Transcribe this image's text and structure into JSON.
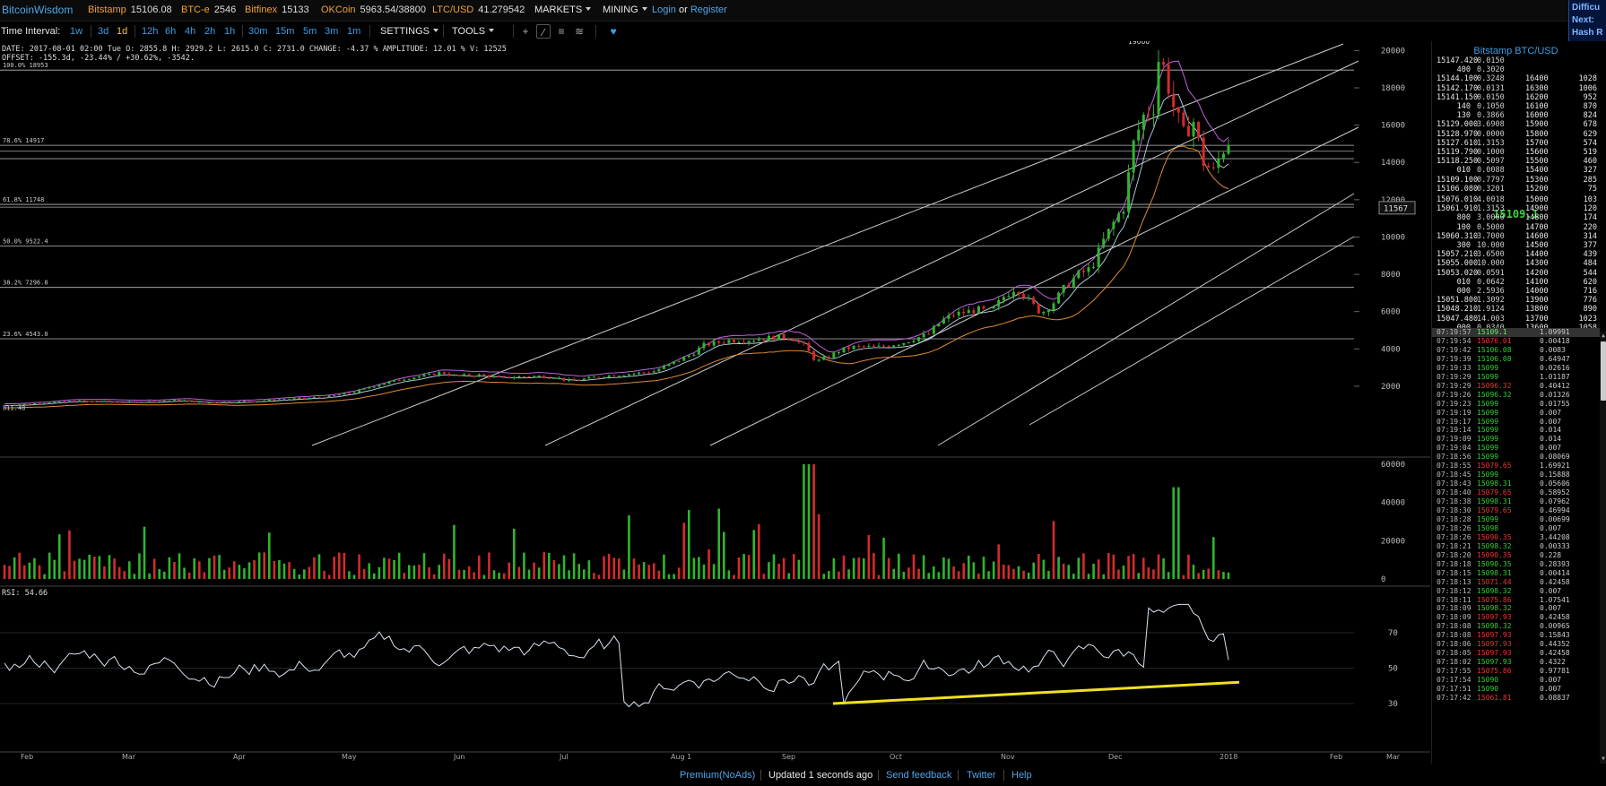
{
  "topbar": {
    "logo": "BitcoinWisdom",
    "exchanges": [
      {
        "name": "Bitstamp",
        "value": "15106.08"
      },
      {
        "name": "BTC-e",
        "value": "2546"
      },
      {
        "name": "Bitfinex",
        "value": "15133"
      },
      {
        "name": "OKCoin",
        "value": "5963.54/38800"
      },
      {
        "name": "LTC/USD",
        "value": "41.279542"
      }
    ],
    "markets_label": "MARKETS",
    "mining_label": "MINING",
    "login_label": "Login",
    "or_label": "or",
    "register_label": "Register"
  },
  "farright": {
    "line1": "Difficu",
    "line2": "Next:",
    "line3": "Hash R"
  },
  "toolbar": {
    "interval_label": "Time Interval:",
    "intervals": [
      "1w",
      "3d",
      "1d",
      "12h",
      "6h",
      "4h",
      "2h",
      "1h",
      "30m",
      "15m",
      "5m",
      "3m",
      "1m"
    ],
    "active_interval": "1d",
    "settings_label": "SETTINGS",
    "tools_label": "TOOLS"
  },
  "ohlc": {
    "line1": "DATE: 2017-08-01 02:00 Tue   O: 2855.8   H: 2929.2   L: 2615.0   C: 2731.0   CHANGE: -4.37 %   AMPLITUDE: 12.01 %   V: 12525",
    "line2": "OFFSET: -155.3d, -23.44% / +30.62%, -3542."
  },
  "chart_data": {
    "type": "candlestick",
    "market": "Bitstamp BTC/USD",
    "interval": "1d",
    "x_ticks": [
      "Feb",
      "Mar",
      "Apr",
      "May",
      "Jun",
      "Jul",
      "Aug 1",
      "Sep",
      "Oct",
      "Nov",
      "Dec",
      "2018",
      "Feb",
      "Mar"
    ],
    "price_axis": {
      "ticks": [
        2000,
        4000,
        6000,
        8000,
        10000,
        12000,
        14000,
        16000,
        18000,
        20000
      ],
      "range": [
        0,
        21500
      ],
      "label_at_cursor": "11567"
    },
    "annotations": {
      "high_marker": "19666",
      "low_marker": "811.48"
    },
    "fib_levels": [
      {
        "label": "100.0% 18953",
        "value": 18953
      },
      {
        "label": "78.6% 14917",
        "value": 14917
      },
      {
        "label": "61.8% 11748",
        "value": 11748
      },
      {
        "label": "50.0% 9522.4",
        "value": 9522.4
      },
      {
        "label": "38.2% 7296.8",
        "value": 7296.8
      },
      {
        "label": "23.6% 4543.0",
        "value": 4543.0
      }
    ],
    "price_series_approx": [
      [
        0,
        980
      ],
      [
        10,
        1050
      ],
      [
        20,
        1150
      ],
      [
        30,
        1200
      ],
      [
        40,
        1180
      ],
      [
        50,
        1150
      ],
      [
        60,
        1180
      ],
      [
        70,
        1250
      ],
      [
        80,
        1120
      ],
      [
        90,
        1150
      ],
      [
        100,
        1200
      ],
      [
        110,
        1290
      ],
      [
        120,
        1350
      ],
      [
        130,
        1450
      ],
      [
        140,
        1700
      ],
      [
        150,
        2100
      ],
      [
        160,
        2400
      ],
      [
        170,
        2600
      ],
      [
        175,
        2750
      ],
      [
        180,
        2550
      ],
      [
        190,
        2600
      ],
      [
        200,
        2450
      ],
      [
        210,
        2550
      ],
      [
        220,
        2500
      ],
      [
        225,
        2300
      ],
      [
        230,
        2350
      ],
      [
        240,
        2550
      ],
      [
        250,
        2650
      ],
      [
        260,
        2800
      ],
      [
        270,
        3400
      ],
      [
        275,
        3700
      ],
      [
        280,
        4200
      ],
      [
        290,
        4450
      ],
      [
        300,
        4500
      ],
      [
        310,
        4650
      ],
      [
        315,
        4600
      ],
      [
        320,
        4200
      ],
      [
        325,
        3300
      ],
      [
        330,
        3600
      ],
      [
        335,
        3950
      ],
      [
        340,
        4100
      ],
      [
        350,
        4100
      ],
      [
        360,
        4350
      ],
      [
        370,
        4800
      ],
      [
        375,
        5500
      ],
      [
        380,
        5850
      ],
      [
        390,
        6100
      ],
      [
        395,
        6000
      ],
      [
        400,
        6800
      ],
      [
        405,
        7300
      ],
      [
        410,
        6600
      ],
      [
        415,
        5900
      ],
      [
        420,
        6500
      ],
      [
        425,
        7400
      ],
      [
        430,
        8000
      ],
      [
        435,
        8300
      ],
      [
        440,
        9800
      ],
      [
        445,
        11000
      ],
      [
        448,
        11600
      ],
      [
        452,
        15000
      ],
      [
        456,
        16500
      ],
      [
        460,
        17000
      ],
      [
        462,
        19500
      ],
      [
        464,
        19100
      ],
      [
        468,
        17000
      ],
      [
        472,
        15500
      ],
      [
        476,
        16200
      ],
      [
        480,
        14000
      ],
      [
        484,
        13500
      ],
      [
        487,
        14500
      ],
      [
        490,
        15109
      ]
    ],
    "volume_axis": {
      "ticks": [
        0,
        20000,
        40000,
        60000
      ]
    },
    "rsi": {
      "label": "RSI: 54.66",
      "ticks": [
        30,
        50,
        70
      ],
      "value": 54.66
    }
  },
  "rightpanel": {
    "title": "Bitstamp BTC/USD",
    "asks": [
      {
        "price": "15147.420",
        "amount": "0.0150"
      },
      {
        "price": "400",
        "amount": "0.3020"
      },
      {
        "price": "15144.100",
        "amount": "0.3248",
        "p2": "16400",
        "a2": "1028"
      },
      {
        "price": "15142.170",
        "amount": "0.0131",
        "p2": "16300",
        "a2": "1006"
      },
      {
        "price": "15141.150",
        "amount": "0.0150",
        "p2": "16200",
        "a2": "952"
      },
      {
        "price": "140",
        "amount": "0.1050",
        "p2": "16100",
        "a2": "870"
      },
      {
        "price": "130",
        "amount": "0.3866",
        "p2": "16000",
        "a2": "824"
      },
      {
        "price": "15129.000",
        "amount": "3.6908",
        "p2": "15900",
        "a2": "678"
      },
      {
        "price": "15128.970",
        "amount": "0.0000",
        "p2": "15800",
        "a2": "629"
      },
      {
        "price": "15127.610",
        "amount": "1.3153",
        "p2": "15700",
        "a2": "574"
      },
      {
        "price": "15119.790",
        "amount": "0.1000",
        "p2": "15600",
        "a2": "519"
      },
      {
        "price": "15118.250",
        "amount": "0.5097",
        "p2": "15500",
        "a2": "460"
      },
      {
        "price": "010",
        "amount": "0.0088",
        "p2": "15400",
        "a2": "327"
      },
      {
        "price": "15109.100",
        "amount": "0.7797",
        "p2": "15300",
        "a2": "285"
      },
      {
        "price": "15106.080",
        "amount": "0.3201",
        "p2": "15200",
        "a2": "75"
      }
    ],
    "last_price": "15109.1",
    "bids": [
      {
        "price": "15076.010",
        "amount": "4.0018",
        "p2": "15000",
        "a2": "103"
      },
      {
        "price": "15061.910",
        "amount": "1.3153",
        "p2": "14900",
        "a2": "120"
      },
      {
        "price": "800",
        "amount": "3.0000",
        "p2": "14800",
        "a2": "174"
      },
      {
        "price": "100",
        "amount": "0.5000",
        "p2": "14700",
        "a2": "220"
      },
      {
        "price": "15060.310",
        "amount": "3.7000",
        "p2": "14600",
        "a2": "314"
      },
      {
        "price": "300",
        "amount": "10.000",
        "p2": "14500",
        "a2": "377"
      },
      {
        "price": "15057.210",
        "amount": "3.6500",
        "p2": "14400",
        "a2": "439"
      },
      {
        "price": "15055.000",
        "amount": "10.000",
        "p2": "14300",
        "a2": "484"
      },
      {
        "price": "15053.020",
        "amount": "0.0591",
        "p2": "14200",
        "a2": "544"
      },
      {
        "price": "010",
        "amount": "0.0642",
        "p2": "14100",
        "a2": "620"
      },
      {
        "price": "000",
        "amount": "2.5936",
        "p2": "14000",
        "a2": "716"
      },
      {
        "price": "15051.800",
        "amount": "1.3092",
        "p2": "13900",
        "a2": "776"
      },
      {
        "price": "15048.210",
        "amount": "1.9124",
        "p2": "13800",
        "a2": "890"
      },
      {
        "price": "15047.480",
        "amount": "14.003",
        "p2": "13700",
        "a2": "1023"
      },
      {
        "price": "000",
        "amount": "0.0340",
        "p2": "13600",
        "a2": "1058"
      }
    ],
    "trades": [
      {
        "time": "07:19:57",
        "price": "15109.1",
        "amount": "1.09991",
        "side": "buy"
      },
      {
        "time": "07:19:54",
        "price": "15076.01",
        "amount": "0.00418",
        "side": "sell"
      },
      {
        "time": "07:19:42",
        "price": "15106.08",
        "amount": "0.0083",
        "side": "buy"
      },
      {
        "time": "07:19:39",
        "price": "15106.08",
        "amount": "0.64947",
        "side": "buy"
      },
      {
        "time": "07:19:33",
        "price": "15099",
        "amount": "0.02616",
        "side": "buy"
      },
      {
        "time": "07:19:29",
        "price": "15099",
        "amount": "1.01187",
        "side": "buy"
      },
      {
        "time": "07:19:29",
        "price": "15096.32",
        "amount": "0.40412",
        "side": "sell"
      },
      {
        "time": "07:19:26",
        "price": "15096.32",
        "amount": "0.01326",
        "side": "buy"
      },
      {
        "time": "07:19:23",
        "price": "15099",
        "amount": "0.01755",
        "side": "buy"
      },
      {
        "time": "07:19:19",
        "price": "15099",
        "amount": "0.007",
        "side": "buy"
      },
      {
        "time": "07:19:17",
        "price": "15099",
        "amount": "0.007",
        "side": "buy"
      },
      {
        "time": "07:19:14",
        "price": "15099",
        "amount": "0.014",
        "side": "buy"
      },
      {
        "time": "07:19:09",
        "price": "15099",
        "amount": "0.014",
        "side": "buy"
      },
      {
        "time": "07:19:04",
        "price": "15099",
        "amount": "0.007",
        "side": "buy"
      },
      {
        "time": "07:18:56",
        "price": "15099",
        "amount": "0.08069",
        "side": "buy"
      },
      {
        "time": "07:18:55",
        "price": "15079.65",
        "amount": "1.69921",
        "side": "sell"
      },
      {
        "time": "07:18:45",
        "price": "15099",
        "amount": "0.15888",
        "side": "buy"
      },
      {
        "time": "07:18:43",
        "price": "15098.31",
        "amount": "0.05606",
        "side": "buy"
      },
      {
        "time": "07:18:40",
        "price": "15079.65",
        "amount": "0.58952",
        "side": "sell"
      },
      {
        "time": "07:18:38",
        "price": "15098.31",
        "amount": "0.07962",
        "side": "buy"
      },
      {
        "time": "07:18:30",
        "price": "15079.65",
        "amount": "0.46994",
        "side": "sell"
      },
      {
        "time": "07:18:28",
        "price": "15099",
        "amount": "0.00699",
        "side": "buy"
      },
      {
        "time": "07:18:26",
        "price": "15098",
        "amount": "0.007",
        "side": "buy"
      },
      {
        "time": "07:18:26",
        "price": "15090.35",
        "amount": "3.44208",
        "side": "sell"
      },
      {
        "time": "07:18:21",
        "price": "15098.32",
        "amount": "0.00333",
        "side": "buy"
      },
      {
        "time": "07:18:20",
        "price": "15090.35",
        "amount": "0.228",
        "side": "sell"
      },
      {
        "time": "07:18:18",
        "price": "15090.35",
        "amount": "0.28393",
        "side": "buy"
      },
      {
        "time": "07:18:15",
        "price": "15098.31",
        "amount": "0.00414",
        "side": "buy"
      },
      {
        "time": "07:18:13",
        "price": "15071.44",
        "amount": "0.42458",
        "side": "sell"
      },
      {
        "time": "07:18:12",
        "price": "15098.32",
        "amount": "0.007",
        "side": "buy"
      },
      {
        "time": "07:18:11",
        "price": "15075.86",
        "amount": "1.07541",
        "side": "sell"
      },
      {
        "time": "07:18:09",
        "price": "15098.32",
        "amount": "0.007",
        "side": "buy"
      },
      {
        "time": "07:18:09",
        "price": "15097.93",
        "amount": "0.42458",
        "side": "sell"
      },
      {
        "time": "07:18:08",
        "price": "15098.32",
        "amount": "0.00965",
        "side": "buy"
      },
      {
        "time": "07:18:08",
        "price": "15097.93",
        "amount": "0.15843",
        "side": "sell"
      },
      {
        "time": "07:18:06",
        "price": "15097.93",
        "amount": "0.44352",
        "side": "sell"
      },
      {
        "time": "07:18:05",
        "price": "15097.93",
        "amount": "0.42458",
        "side": "sell"
      },
      {
        "time": "07:18:02",
        "price": "15097.93",
        "amount": "0.4322",
        "side": "buy"
      },
      {
        "time": "07:17:55",
        "price": "15075.86",
        "amount": "0.97781",
        "side": "sell"
      },
      {
        "time": "07:17:54",
        "price": "15090",
        "amount": "0.007",
        "side": "buy"
      },
      {
        "time": "07:17:51",
        "price": "15090",
        "amount": "0.007",
        "side": "buy"
      },
      {
        "time": "07:17:42",
        "price": "15061.81",
        "amount": "0.08837",
        "side": "sell"
      }
    ]
  },
  "footer": {
    "premium": "Premium(NoAds)",
    "updated": "Updated 1 seconds ago",
    "feedback": "Send feedback",
    "twitter": "Twitter",
    "help": "Help"
  }
}
